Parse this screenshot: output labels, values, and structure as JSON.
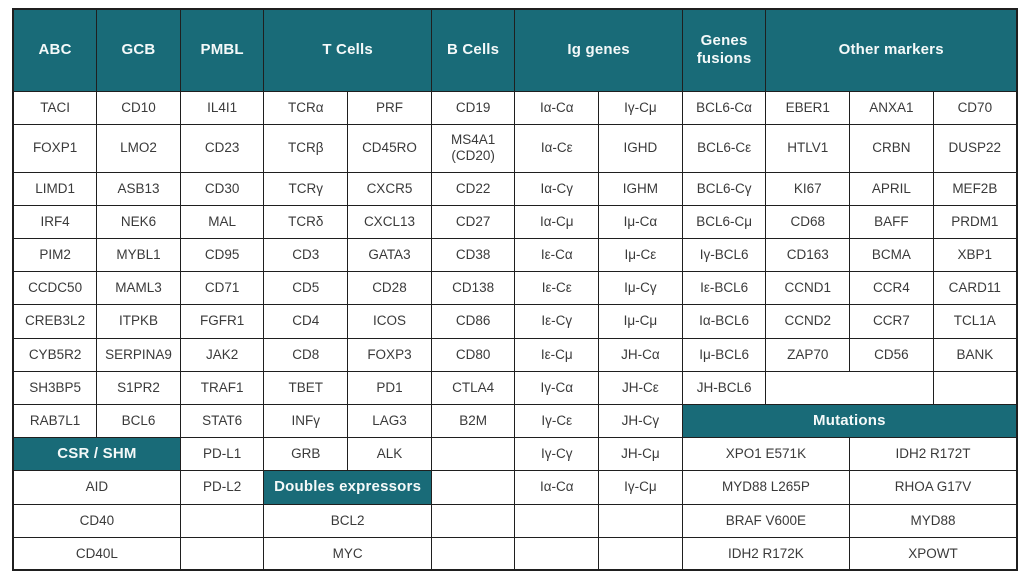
{
  "theme": {
    "teal": "#196b78",
    "border": "#1f1f1f",
    "text": "#3a3a3a",
    "head_text": "#f4f9f9",
    "background": "#ffffff"
  },
  "table": {
    "column_count": 12,
    "section_headers": [
      "ABC",
      "GCB",
      "PMBL",
      "T Cells",
      "B Cells",
      "Ig genes",
      "Genes fusions",
      "Other markers",
      "CSR / SHM",
      "Doubles expressors",
      "Mutations"
    ],
    "rows": [
      {
        "cells": [
          {
            "label": "ABC",
            "span": 1,
            "kind": "head"
          },
          {
            "label": "GCB",
            "span": 1,
            "kind": "head"
          },
          {
            "label": "PMBL",
            "span": 1,
            "kind": "head"
          },
          {
            "label": "T Cells",
            "span": 2,
            "kind": "head"
          },
          {
            "label": "B Cells",
            "span": 1,
            "kind": "head"
          },
          {
            "label": "Ig genes",
            "span": 2,
            "kind": "head"
          },
          {
            "label": "Genes fusions",
            "span": 1,
            "kind": "head"
          },
          {
            "label": "Other markers",
            "span": 3,
            "kind": "head"
          }
        ]
      },
      {
        "cells": [
          {
            "label": "TACI"
          },
          {
            "label": "CD10"
          },
          {
            "label": "IL4I1"
          },
          {
            "label": "TCRα"
          },
          {
            "label": "PRF"
          },
          {
            "label": "CD19"
          },
          {
            "label": "Iα-Cα"
          },
          {
            "label": "Iγ-Cμ"
          },
          {
            "label": "BCL6-Cα"
          },
          {
            "label": "EBER1"
          },
          {
            "label": "ANXA1"
          },
          {
            "label": "CD70"
          }
        ]
      },
      {
        "cells": [
          {
            "label": "FOXP1"
          },
          {
            "label": "LMO2"
          },
          {
            "label": "CD23"
          },
          {
            "label": "TCRβ"
          },
          {
            "label": "CD45RO"
          },
          {
            "label": "MS4A1 (CD20)"
          },
          {
            "label": "Iα-Cε"
          },
          {
            "label": "IGHD"
          },
          {
            "label": "BCL6-Cε"
          },
          {
            "label": "HTLV1"
          },
          {
            "label": "CRBN"
          },
          {
            "label": "DUSP22"
          }
        ]
      },
      {
        "cells": [
          {
            "label": "LIMD1"
          },
          {
            "label": "ASB13"
          },
          {
            "label": "CD30"
          },
          {
            "label": "TCRγ"
          },
          {
            "label": "CXCR5"
          },
          {
            "label": "CD22"
          },
          {
            "label": "Iα-Cγ"
          },
          {
            "label": "IGHM"
          },
          {
            "label": "BCL6-Cγ"
          },
          {
            "label": "KI67"
          },
          {
            "label": "APRIL"
          },
          {
            "label": "MEF2B"
          }
        ]
      },
      {
        "cells": [
          {
            "label": "IRF4"
          },
          {
            "label": "NEK6"
          },
          {
            "label": "MAL"
          },
          {
            "label": "TCRδ"
          },
          {
            "label": "CXCL13"
          },
          {
            "label": "CD27"
          },
          {
            "label": "Iα-Cμ"
          },
          {
            "label": "Iμ-Cα"
          },
          {
            "label": "BCL6-Cμ"
          },
          {
            "label": "CD68"
          },
          {
            "label": "BAFF"
          },
          {
            "label": "PRDM1"
          }
        ]
      },
      {
        "cells": [
          {
            "label": "PIM2"
          },
          {
            "label": "MYBL1"
          },
          {
            "label": "CD95"
          },
          {
            "label": "CD3"
          },
          {
            "label": "GATA3"
          },
          {
            "label": "CD38"
          },
          {
            "label": "Iε-Cα"
          },
          {
            "label": "Iμ-Cε"
          },
          {
            "label": "Iγ-BCL6"
          },
          {
            "label": "CD163"
          },
          {
            "label": "BCMA"
          },
          {
            "label": "XBP1"
          }
        ]
      },
      {
        "cells": [
          {
            "label": "CCDC50"
          },
          {
            "label": "MAML3"
          },
          {
            "label": "CD71"
          },
          {
            "label": "CD5"
          },
          {
            "label": "CD28"
          },
          {
            "label": "CD138"
          },
          {
            "label": "Iε-Cε"
          },
          {
            "label": "Iμ-Cγ"
          },
          {
            "label": "Iε-BCL6"
          },
          {
            "label": "CCND1"
          },
          {
            "label": "CCR4"
          },
          {
            "label": "CARD11"
          }
        ]
      },
      {
        "cells": [
          {
            "label": "CREB3L2"
          },
          {
            "label": "ITPKB"
          },
          {
            "label": "FGFR1"
          },
          {
            "label": "CD4"
          },
          {
            "label": "ICOS"
          },
          {
            "label": "CD86"
          },
          {
            "label": "Iε-Cγ"
          },
          {
            "label": "Iμ-Cμ"
          },
          {
            "label": "Iα-BCL6"
          },
          {
            "label": "CCND2"
          },
          {
            "label": "CCR7"
          },
          {
            "label": "TCL1A"
          }
        ]
      },
      {
        "cells": [
          {
            "label": "CYB5R2"
          },
          {
            "label": "SERPINA9"
          },
          {
            "label": "JAK2"
          },
          {
            "label": "CD8"
          },
          {
            "label": "FOXP3"
          },
          {
            "label": "CD80"
          },
          {
            "label": "Iε-Cμ"
          },
          {
            "label": "JH-Cα"
          },
          {
            "label": "Iμ-BCL6"
          },
          {
            "label": "ZAP70"
          },
          {
            "label": "CD56"
          },
          {
            "label": "BANK"
          }
        ]
      },
      {
        "cells": [
          {
            "label": "SH3BP5"
          },
          {
            "label": "S1PR2"
          },
          {
            "label": "TRAF1"
          },
          {
            "label": "TBET"
          },
          {
            "label": "PD1"
          },
          {
            "label": "CTLA4"
          },
          {
            "label": "Iγ-Cα"
          },
          {
            "label": "JH-Cε"
          },
          {
            "label": "JH-BCL6"
          },
          {
            "label": "",
            "span": 2,
            "kind": "empty"
          },
          {
            "label": "",
            "kind": "empty"
          }
        ]
      },
      {
        "cells": [
          {
            "label": "RAB7L1"
          },
          {
            "label": "BCL6"
          },
          {
            "label": "STAT6"
          },
          {
            "label": "INFγ"
          },
          {
            "label": "LAG3"
          },
          {
            "label": "B2M"
          },
          {
            "label": "Iγ-Cε"
          },
          {
            "label": "JH-Cγ"
          },
          {
            "label": "Mutations",
            "span": 4,
            "kind": "head"
          }
        ]
      },
      {
        "cells": [
          {
            "label": "CSR / SHM",
            "span": 2,
            "kind": "head"
          },
          {
            "label": "PD-L1"
          },
          {
            "label": "GRB"
          },
          {
            "label": "ALK"
          },
          {
            "label": "",
            "kind": "empty"
          },
          {
            "label": "Iγ-Cγ"
          },
          {
            "label": "JH-Cμ"
          },
          {
            "label": "XPO1 E571K",
            "span": 2
          },
          {
            "label": "IDH2 R172T",
            "span": 2
          }
        ]
      },
      {
        "cells": [
          {
            "label": "AID",
            "span": 2
          },
          {
            "label": "PD-L2"
          },
          {
            "label": "Doubles expressors",
            "span": 2,
            "kind": "head"
          },
          {
            "label": "",
            "kind": "empty"
          },
          {
            "label": "Iα-Cα"
          },
          {
            "label": "Iγ-Cμ"
          },
          {
            "label": "MYD88 L265P",
            "span": 2
          },
          {
            "label": "RHOA G17V",
            "span": 2
          }
        ]
      },
      {
        "cells": [
          {
            "label": "CD40",
            "span": 2
          },
          {
            "label": "",
            "kind": "empty"
          },
          {
            "label": "BCL2",
            "span": 2
          },
          {
            "label": "",
            "kind": "empty"
          },
          {
            "label": "",
            "kind": "empty"
          },
          {
            "label": "",
            "kind": "empty"
          },
          {
            "label": "BRAF V600E",
            "span": 2
          },
          {
            "label": "MYD88",
            "span": 2
          }
        ]
      },
      {
        "cells": [
          {
            "label": "CD40L",
            "span": 2
          },
          {
            "label": "",
            "kind": "empty"
          },
          {
            "label": "MYC",
            "span": 2
          },
          {
            "label": "",
            "kind": "empty"
          },
          {
            "label": "",
            "kind": "empty"
          },
          {
            "label": "",
            "kind": "empty"
          },
          {
            "label": "IDH2 R172K",
            "span": 2
          },
          {
            "label": "XPOWT",
            "span": 2
          }
        ]
      }
    ]
  }
}
